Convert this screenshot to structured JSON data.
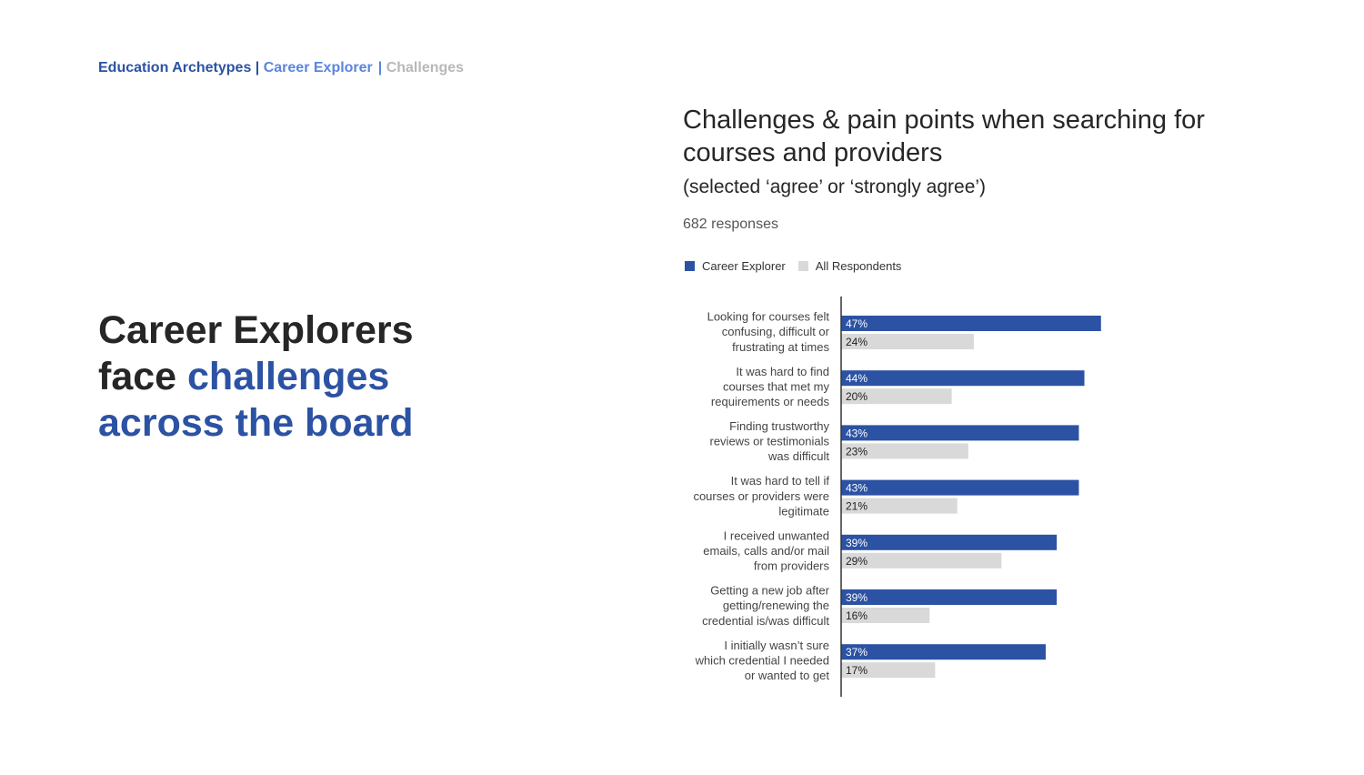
{
  "breadcrumb": {
    "part1": "Education Archetypes",
    "sep1": " | ",
    "part2": "Career Explorer",
    "sep2": "| ",
    "part3": "Challenges"
  },
  "headline": {
    "line1": "Career Explorers",
    "line2_dark": "face ",
    "line2_blue": "challenges",
    "line3_blue": "across the board"
  },
  "colors": {
    "career_explorer": "#2c52a3",
    "all_respondents": "#d9d9d9",
    "breadcrumb_light_blue": "#5b85de",
    "breadcrumb_gray": "#b8b8b8"
  },
  "chart_data": {
    "type": "bar",
    "orientation": "horizontal",
    "title": "Challenges & pain points when searching for courses and providers",
    "subtitle": "(selected ‘agree’ or ‘strongly agree’)",
    "note": "682 responses",
    "legend_position": "top-left",
    "grid": false,
    "xlim": [
      0,
      100
    ],
    "categories": [
      [
        "Looking for courses felt",
        "confusing, difficult or",
        "frustrating at times"
      ],
      [
        "It was hard to find",
        "courses that met my",
        "requirements or needs"
      ],
      [
        "Finding trustworthy",
        "reviews or testimonials",
        "was difficult"
      ],
      [
        "It was hard to tell if",
        "courses or providers were",
        "legitimate"
      ],
      [
        "I received unwanted",
        "emails, calls and/or mail",
        "from providers"
      ],
      [
        "Getting a new job after",
        "getting/renewing the",
        "credential is/was difficult"
      ],
      [
        "I initially wasn’t sure",
        "which credential I needed",
        "or wanted to get"
      ]
    ],
    "series": [
      {
        "name": "Career Explorer",
        "values": [
          47,
          44,
          43,
          43,
          39,
          39,
          37
        ],
        "labels": [
          "47%",
          "44%",
          "43%",
          "43%",
          "39%",
          "39%",
          "37%"
        ]
      },
      {
        "name": "All Respondents",
        "values": [
          24,
          20,
          23,
          21,
          29,
          16,
          17
        ],
        "labels": [
          "24%",
          "20%",
          "23%",
          "21%",
          "29%",
          "16%",
          "17%"
        ]
      }
    ]
  }
}
